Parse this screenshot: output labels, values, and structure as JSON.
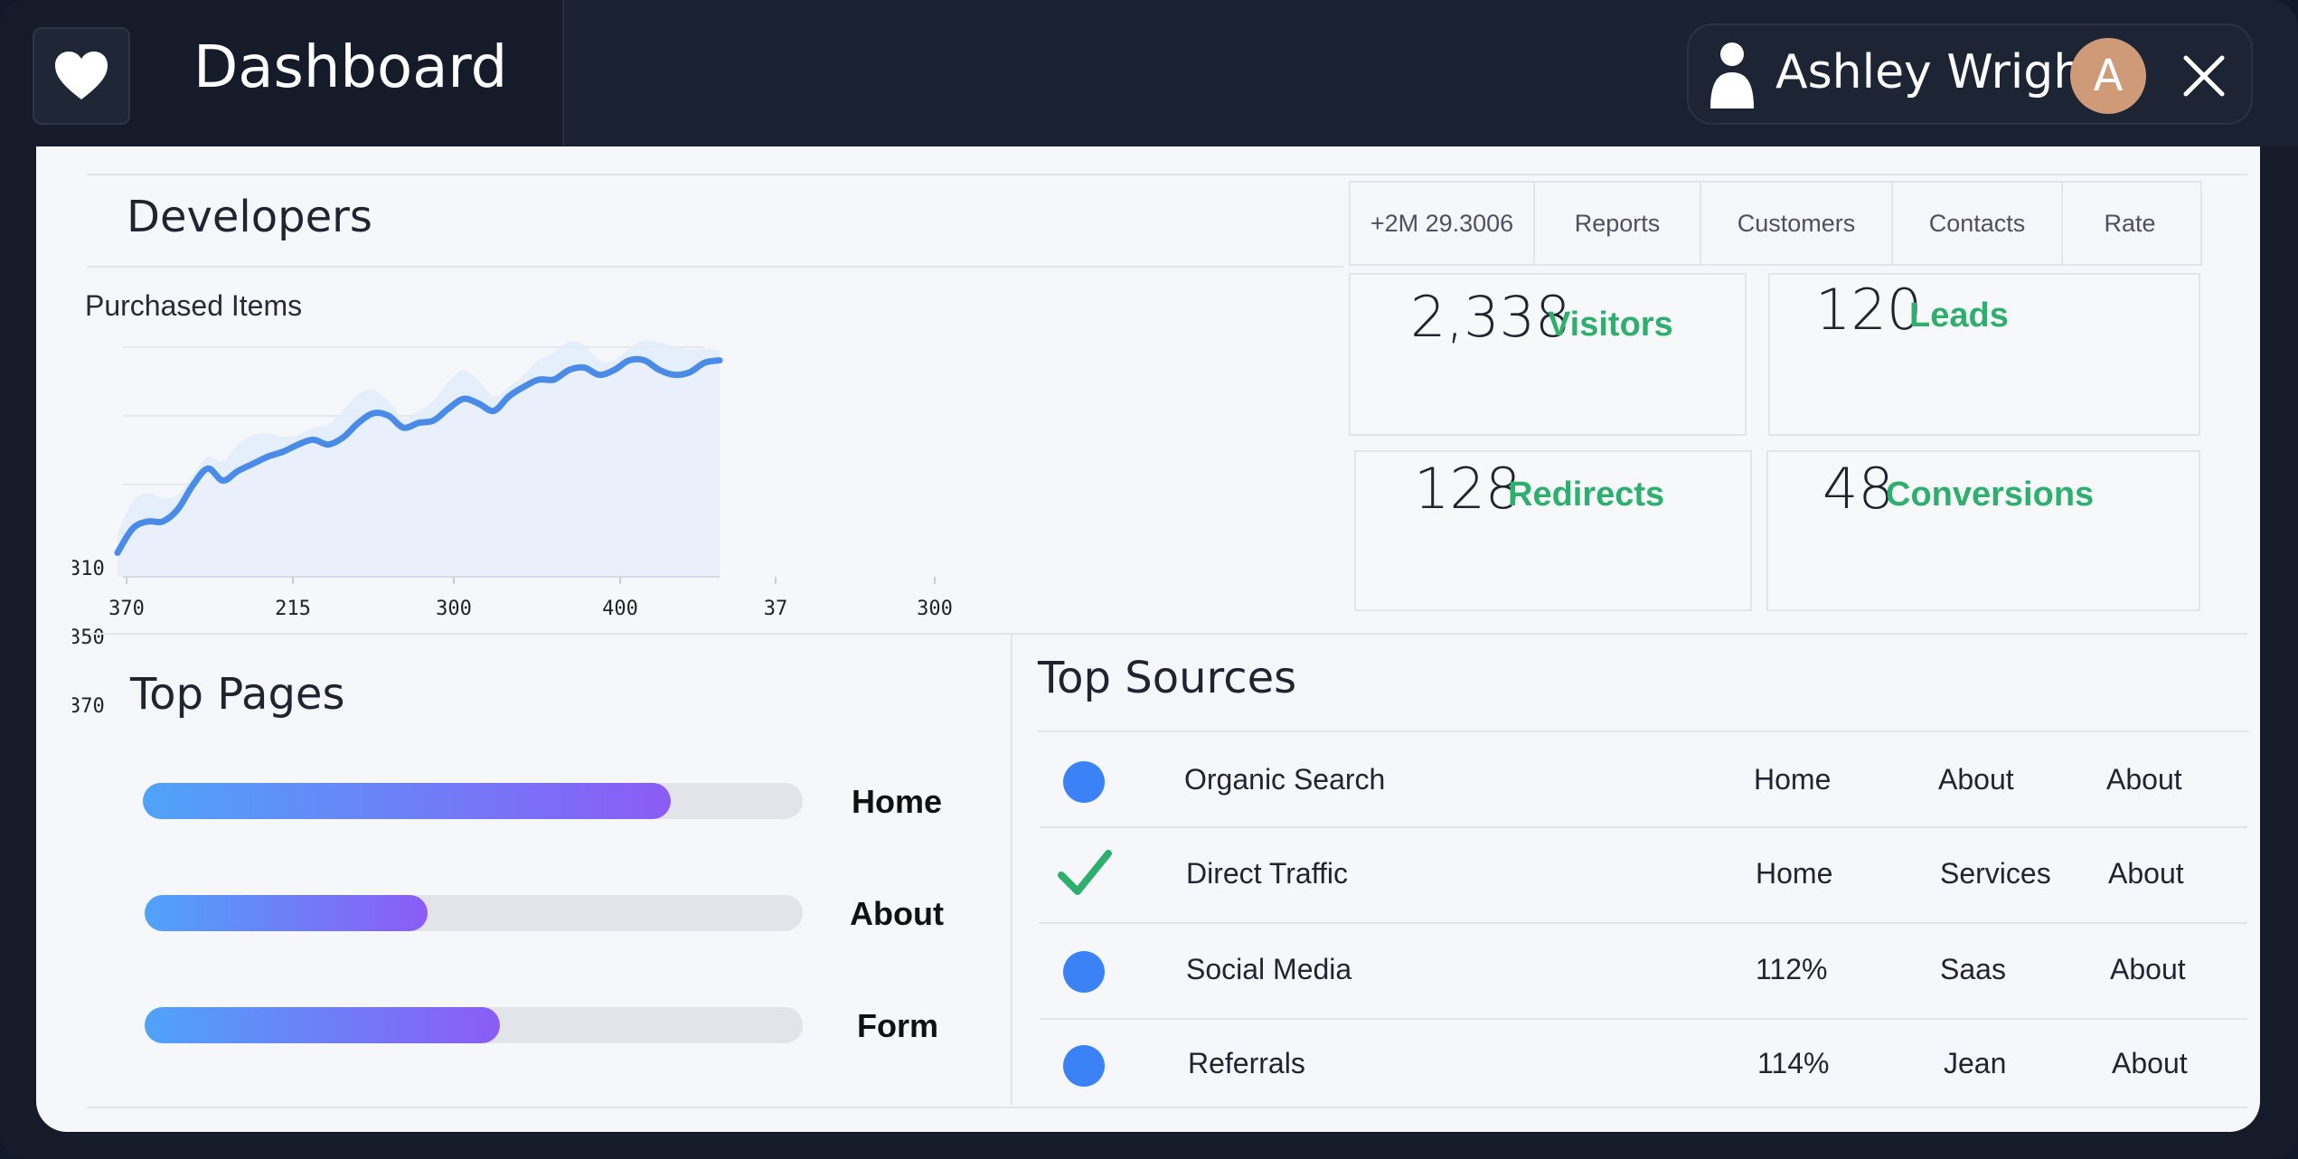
{
  "header": {
    "title": "Dashboard",
    "user_name": "Ashley Wright",
    "avatar_initial": "A"
  },
  "developers": {
    "title": "Developers",
    "tabs": [
      "+2M 29.3006",
      "Reports",
      "Customers",
      "Contacts",
      "Rate"
    ]
  },
  "chart_data": {
    "type": "area",
    "title": "Purchased Items",
    "y_tick_labels": [
      "310",
      "350",
      "370"
    ],
    "x_tick_labels": [
      "370",
      "215",
      "300",
      "400",
      "37",
      "300"
    ],
    "grid": true,
    "series": [
      {
        "values": [
          10,
          20,
          23,
          23,
          28,
          38,
          45,
          40,
          44,
          47,
          50,
          52,
          55,
          57,
          55,
          58,
          64,
          68,
          67,
          62,
          64,
          65,
          70,
          74,
          72,
          69,
          75,
          79,
          82,
          82,
          86,
          87,
          84,
          86,
          90,
          90,
          86,
          84,
          85,
          89,
          90
        ]
      }
    ]
  },
  "stats": [
    {
      "value": "2,338",
      "label": "Visitors"
    },
    {
      "value": "120",
      "label": "Leads"
    },
    {
      "value": "128",
      "label": "Redirects"
    },
    {
      "value": "48",
      "label": "Conversions"
    }
  ],
  "top_pages": {
    "title": "Top Pages",
    "items": [
      {
        "label": "Home",
        "progress": 0.8
      },
      {
        "label": "About",
        "progress": 0.43
      },
      {
        "label": "Form",
        "progress": 0.54
      }
    ]
  },
  "top_sources": {
    "title": "Top Sources",
    "rows": [
      {
        "marker": "dot",
        "name": "Organic Search",
        "c1": "Home",
        "c2": "About",
        "c3": "About"
      },
      {
        "marker": "check",
        "name": "Direct Traffic",
        "c1": "Home",
        "c2": "Services",
        "c3": "About"
      },
      {
        "marker": "dot",
        "name": "Social Media",
        "c1": "112%",
        "c2": "Saas",
        "c3": "About"
      },
      {
        "marker": "dot",
        "name": "Referrals",
        "c1": "114%",
        "c2": "Jean",
        "c3": "About"
      }
    ]
  },
  "colors": {
    "accent_green": "#2eaf6e",
    "accent_blue": "#3b82f6",
    "bar_gradient_start": "#4fa3f8",
    "bar_gradient_end": "#8b5cf6"
  }
}
